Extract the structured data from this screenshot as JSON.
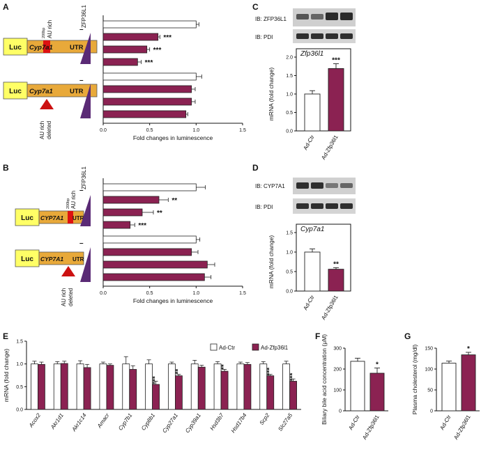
{
  "colors": {
    "treated": "#8b2252",
    "control": "#ffffff",
    "luc": "#ffff66",
    "utr": "#e8a93a",
    "au_rich": "#dd1111",
    "wedge": "#5a2a75",
    "arrow": "#cc1111",
    "blot_band": "#3a3a3a"
  },
  "panels": {
    "A": "A",
    "B": "B",
    "C": "C",
    "D": "D",
    "E": "E",
    "F": "F",
    "G": "G"
  },
  "constructs": {
    "luc": "Luc",
    "mouse_gene": "Cyp7a1",
    "human_gene": "CYP7A1",
    "utr": "UTR",
    "bp_label": "200bp",
    "au_rich_label": "AU rich",
    "au_rich_deleted_line1": "AU rich",
    "au_rich_deleted_line2": "deleted"
  },
  "lum_panels": {
    "protein_label": "ZFP36L1",
    "none_label": "–"
  },
  "blots": {
    "C_top": "IB: ZFP36L1",
    "C_bottom": "IB: PDI",
    "D_top": "IB: CYP7A1",
    "D_bottom": "IB: PDI"
  },
  "chart_data": [
    {
      "id": "A",
      "type": "bar",
      "orientation": "horizontal",
      "xlabel": "Fold changes in luminescence",
      "xlim": [
        0,
        1.5
      ],
      "xticks": [
        "0.0",
        "0.5",
        "1.0",
        "1.5"
      ],
      "groups": [
        {
          "construct": "Cyp7a1 UTR with AU rich",
          "values": [
            1.0,
            0.59,
            0.47,
            0.37
          ],
          "errors": [
            0.03,
            0.02,
            0.03,
            0.04
          ],
          "stars": [
            "",
            "***",
            "***",
            "***"
          ]
        },
        {
          "construct": "Cyp7a1 UTR AU rich deleted",
          "values": [
            1.0,
            0.95,
            0.95,
            0.89
          ],
          "errors": [
            0.06,
            0.04,
            0.04,
            0.02
          ],
          "stars": [
            "",
            "",
            "",
            ""
          ]
        }
      ]
    },
    {
      "id": "B",
      "type": "bar",
      "orientation": "horizontal",
      "xlabel": "Fold changes in luminescence",
      "xlim": [
        0,
        1.5
      ],
      "xticks": [
        "0.0",
        "0.5",
        "1.0",
        "1.5"
      ],
      "groups": [
        {
          "construct": "CYP7A1 UTR with AU rich",
          "values": [
            1.0,
            0.6,
            0.42,
            0.29
          ],
          "errors": [
            0.1,
            0.1,
            0.12,
            0.05
          ],
          "stars": [
            "",
            "**",
            "**",
            "***"
          ]
        },
        {
          "construct": "CYP7A1 UTR AU rich deleted",
          "values": [
            1.0,
            0.95,
            1.12,
            1.09
          ],
          "errors": [
            0.04,
            0.07,
            0.08,
            0.07
          ],
          "stars": [
            "",
            "",
            "",
            ""
          ]
        }
      ]
    },
    {
      "id": "C",
      "type": "bar",
      "title": "Zfp36l1",
      "ylabel": "mRNA (fold change)",
      "ylim": [
        0,
        2.0
      ],
      "yticks": [
        "0.0",
        "0.5",
        "1.0",
        "1.5",
        "2.0"
      ],
      "categories": [
        "Ad-Ctr",
        "Ad-Zfp36l1"
      ],
      "values": [
        1.0,
        1.69
      ],
      "errors": [
        0.09,
        0.13
      ],
      "stars": [
        "",
        "***"
      ]
    },
    {
      "id": "D",
      "type": "bar",
      "title": "Cyp7a1",
      "ylabel": "mRNA (fold change)",
      "ylim": [
        0,
        1.5
      ],
      "yticks": [
        "0.0",
        "0.5",
        "1.0",
        "1.5"
      ],
      "categories": [
        "Ad-Ctr",
        "Ad-Zfp36l1"
      ],
      "values": [
        1.0,
        0.56
      ],
      "errors": [
        0.08,
        0.04
      ],
      "stars": [
        "",
        "**"
      ]
    },
    {
      "id": "E",
      "type": "bar",
      "ylabel": "mRNA (fold change)",
      "ylim": [
        0,
        1.5
      ],
      "yticks": [
        "0.0",
        "0.5",
        "1.0",
        "1.5"
      ],
      "legend": [
        "Ad-Ctr",
        "Ad-Zfp36l1"
      ],
      "categories": [
        "Acox2",
        "Akr1d1",
        "Akr1c14",
        "Amacr",
        "Cyp7b1",
        "Cyp8b1",
        "Cyp27a1",
        "Cyp39a1",
        "Hsd3b7",
        "Hsd17b4",
        "Scp2",
        "Slc27a5"
      ],
      "series": [
        {
          "name": "Ad-Ctr",
          "values": [
            1.0,
            1.0,
            1.0,
            1.0,
            1.0,
            1.0,
            1.0,
            1.0,
            1.0,
            1.0,
            1.0,
            1.0
          ],
          "errors": [
            0.06,
            0.05,
            0.07,
            0.04,
            0.16,
            0.09,
            0.04,
            0.08,
            0.05,
            0.04,
            0.05,
            0.06
          ]
        },
        {
          "name": "Ad-Zfp36l1",
          "values": [
            0.99,
            1.01,
            0.92,
            0.97,
            0.88,
            0.55,
            0.74,
            0.93,
            0.84,
            0.99,
            0.74,
            0.62
          ],
          "errors": [
            0.05,
            0.05,
            0.07,
            0.03,
            0.08,
            0.07,
            0.03,
            0.04,
            0.04,
            0.04,
            0.03,
            0.05
          ]
        }
      ],
      "stars": [
        "",
        "",
        "",
        "",
        "",
        "***",
        "**",
        "",
        "**",
        "",
        "***",
        "***"
      ]
    },
    {
      "id": "F",
      "type": "bar",
      "ylabel": "Biliary bile acid concentration (μM)",
      "ylim": [
        0,
        300
      ],
      "yticks": [
        "0",
        "100",
        "200",
        "300"
      ],
      "categories": [
        "Ad-Ctr",
        "Ad-Zfp36l1"
      ],
      "values": [
        237,
        180
      ],
      "errors": [
        15,
        25
      ],
      "stars": [
        "",
        "*"
      ]
    },
    {
      "id": "G",
      "type": "bar",
      "ylabel": "Plasma cholesterol (mg/dl)",
      "ylim": [
        0,
        150
      ],
      "yticks": [
        "0",
        "50",
        "100",
        "150"
      ],
      "categories": [
        "Ad-Ctr",
        "Ad-Zfp36l1"
      ],
      "values": [
        114,
        134
      ],
      "errors": [
        5,
        6
      ],
      "stars": [
        "",
        "*"
      ]
    }
  ]
}
